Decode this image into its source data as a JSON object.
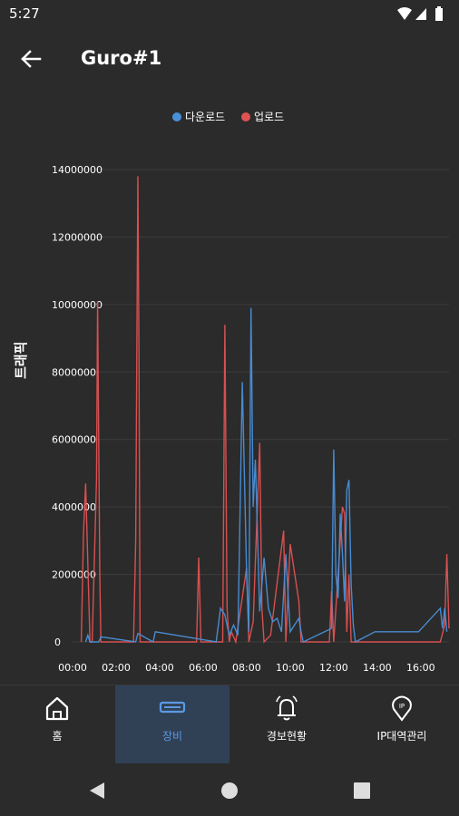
{
  "status": {
    "time": "5:27"
  },
  "header": {
    "title": "Guro#1"
  },
  "legend": [
    {
      "label": "다운로드",
      "color": "#4a90d9"
    },
    {
      "label": "업로드",
      "color": "#e05252"
    }
  ],
  "chart_data": {
    "type": "line",
    "ylabel": "트래픽",
    "ylim": [
      0,
      14000000
    ],
    "y_ticks": [
      "0",
      "2000000",
      "4000000",
      "6000000",
      "8000000",
      "10000000",
      "12000000",
      "14000000"
    ],
    "x_ticks": [
      "00:00",
      "02:00",
      "04:00",
      "06:00",
      "08:00",
      "10:00",
      "12:00",
      "14:00",
      "16:00"
    ],
    "xlim_hours": [
      0,
      17.3
    ],
    "series": [
      {
        "name": "다운로드",
        "color": "#4a90d9",
        "x": [
          0.6,
          0.7,
          0.8,
          1.2,
          1.3,
          2.9,
          3.0,
          3.7,
          3.8,
          6.6,
          6.8,
          7.0,
          7.2,
          7.4,
          7.6,
          7.8,
          8.0,
          8.1,
          8.2,
          8.3,
          8.4,
          8.6,
          8.8,
          9.0,
          9.2,
          9.4,
          9.6,
          9.8,
          10.0,
          10.4,
          10.5,
          10.6,
          11.9,
          12.0,
          12.1,
          12.2,
          12.3,
          12.4,
          12.5,
          12.6,
          12.7,
          12.8,
          12.9,
          13.0,
          13.9,
          14.1,
          15.9,
          16.9,
          17.0,
          17.1,
          17.2
        ],
        "y": [
          0,
          200000,
          0,
          0,
          150000,
          0,
          250000,
          0,
          300000,
          0,
          1000000,
          800000,
          200000,
          500000,
          200000,
          7700000,
          2000000,
          300000,
          9900000,
          4000000,
          5400000,
          900000,
          2500000,
          1000000,
          600000,
          700000,
          300000,
          2600000,
          300000,
          700000,
          300000,
          0,
          400000,
          5700000,
          2000000,
          1300000,
          3800000,
          2600000,
          1200000,
          4500000,
          4800000,
          1700000,
          500000,
          0,
          300000,
          300000,
          300000,
          1000000,
          400000,
          1000000,
          300000
        ]
      },
      {
        "name": "업로드",
        "color": "#e05252",
        "x": [
          0.4,
          0.5,
          0.6,
          0.8,
          0.9,
          1.1,
          1.15,
          1.25,
          1.3,
          2.8,
          2.9,
          3.0,
          3.05,
          3.1,
          5.7,
          5.8,
          5.9,
          6.9,
          7.0,
          7.1,
          7.2,
          7.3,
          7.5,
          8.0,
          8.1,
          8.3,
          8.6,
          8.7,
          8.8,
          9.1,
          9.7,
          9.8,
          10.0,
          10.4,
          10.5,
          11.8,
          11.9,
          12.0,
          12.2,
          12.4,
          12.5,
          12.6,
          12.7,
          12.8,
          13.8,
          16.9,
          17.1,
          17.2,
          17.3
        ],
        "y": [
          0,
          3200000,
          4700000,
          0,
          0,
          4800000,
          10100000,
          2000000,
          0,
          0,
          3000000,
          13800000,
          8500000,
          0,
          0,
          2500000,
          0,
          0,
          9400000,
          1000000,
          0,
          300000,
          0,
          2200000,
          0,
          600000,
          5900000,
          1000000,
          0,
          200000,
          3300000,
          0,
          2900000,
          1200000,
          0,
          0,
          1500000,
          0,
          2000000,
          4000000,
          3800000,
          300000,
          2000000,
          0,
          0,
          0,
          500000,
          2600000,
          400000
        ]
      }
    ]
  },
  "tabs": [
    {
      "label": "홈",
      "icon": "home-icon",
      "selected": false
    },
    {
      "label": "장비",
      "icon": "device-icon",
      "selected": true
    },
    {
      "label": "경보현황",
      "icon": "bell-icon",
      "selected": false
    },
    {
      "label": "IP대역관리",
      "icon": "ip-pin-icon",
      "selected": false
    }
  ]
}
